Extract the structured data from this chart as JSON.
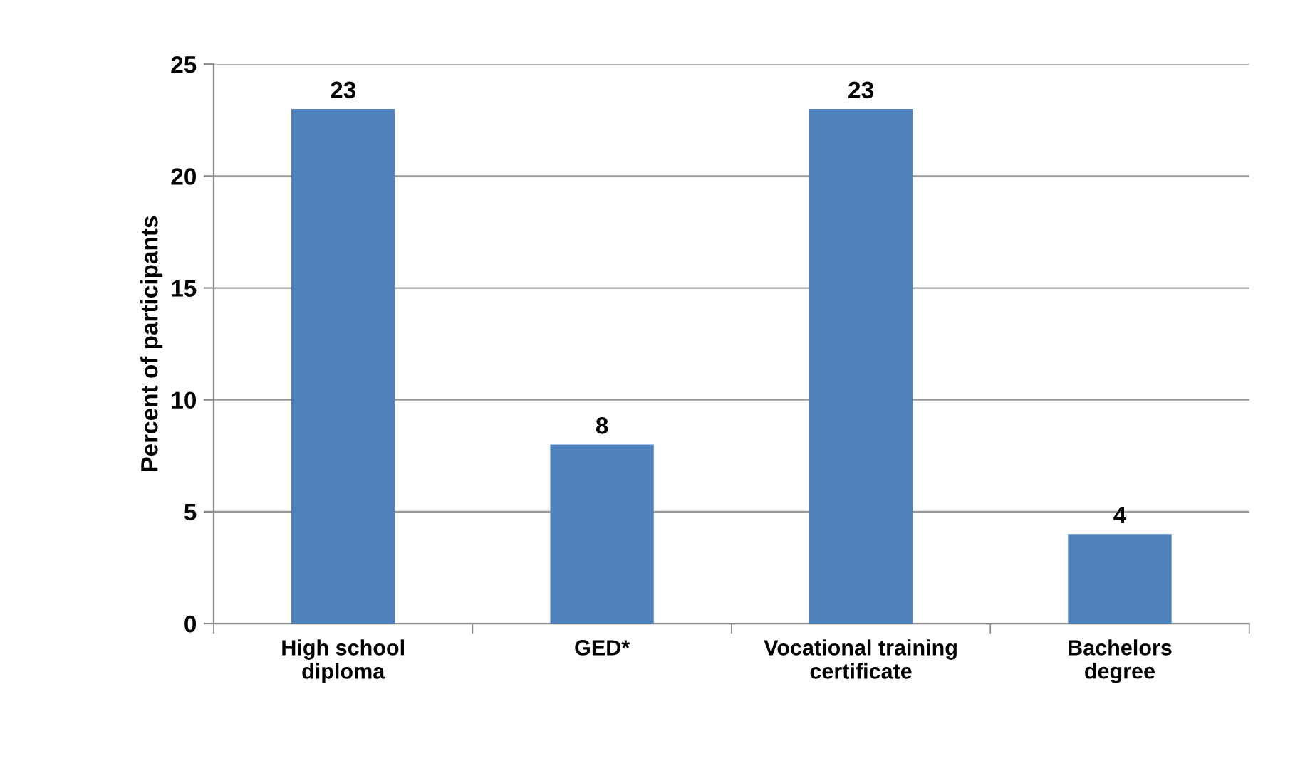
{
  "chart_data": {
    "type": "bar",
    "ylabel": "Percent of participants",
    "categories": [
      "High school\ndiploma",
      "GED*",
      "Vocational training\ncertificate",
      "Bachelors\ndegree"
    ],
    "values": [
      23,
      8,
      23,
      4
    ],
    "color": "#4f81bd",
    "ylim": [
      0,
      25
    ],
    "yticks": [
      0,
      5,
      10,
      15,
      20,
      25
    ],
    "grid": "y",
    "data_labels": true
  }
}
